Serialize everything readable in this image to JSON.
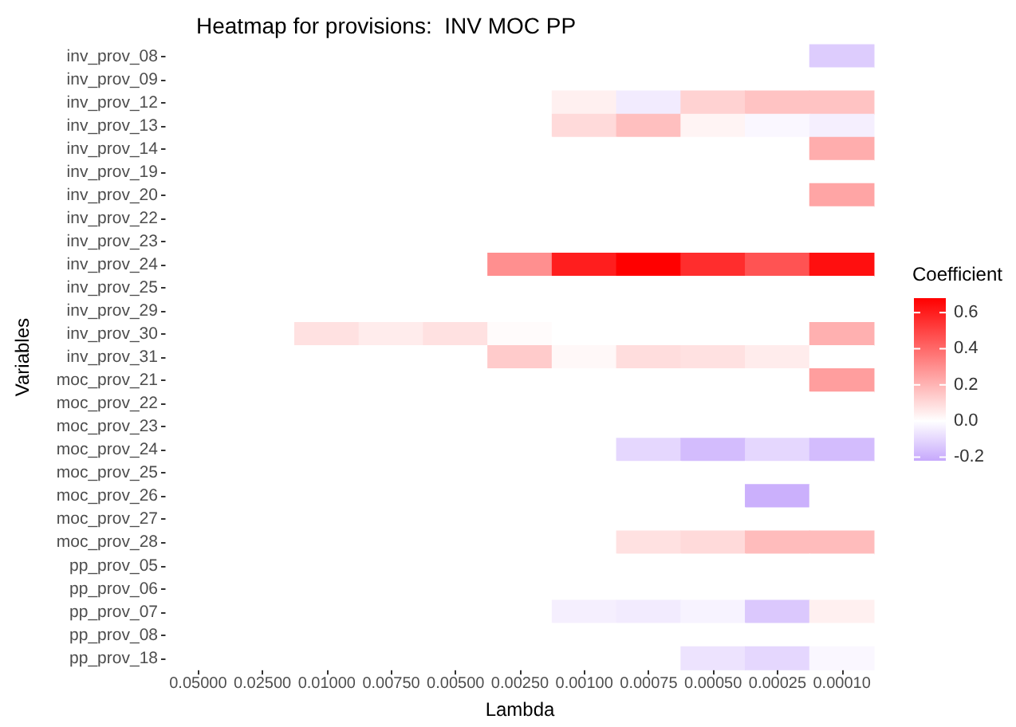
{
  "chart_data": {
    "type": "heatmap",
    "title": "Heatmap for provisions:  INV MOC PP",
    "xlabel": "Lambda",
    "ylabel": "Variables",
    "clabel": "Coefficient",
    "categories": [
      "0.05000",
      "0.02500",
      "0.01000",
      "0.00750",
      "0.00500",
      "0.00250",
      "0.00100",
      "0.00075",
      "0.00050",
      "0.00025",
      "0.00010"
    ],
    "y_categories": [
      "inv_prov_08",
      "inv_prov_09",
      "inv_prov_12",
      "inv_prov_13",
      "inv_prov_14",
      "inv_prov_19",
      "inv_prov_20",
      "inv_prov_22",
      "inv_prov_23",
      "inv_prov_24",
      "inv_prov_25",
      "inv_prov_29",
      "inv_prov_30",
      "inv_prov_31",
      "moc_prov_21",
      "moc_prov_22",
      "moc_prov_23",
      "moc_prov_24",
      "moc_prov_25",
      "moc_prov_26",
      "moc_prov_27",
      "moc_prov_28",
      "pp_prov_05",
      "pp_prov_06",
      "pp_prov_07",
      "pp_prov_08",
      "pp_prov_18"
    ],
    "cells": [
      [
        0,
        0,
        0,
        0,
        0,
        0,
        0,
        0,
        0,
        0,
        -0.13
      ],
      [
        0,
        0,
        0,
        0,
        0,
        0,
        0,
        0,
        0,
        0,
        0
      ],
      [
        0,
        0,
        0,
        0,
        0,
        0,
        0.04,
        -0.05,
        0.12,
        0.16,
        0.16
      ],
      [
        0,
        0,
        0,
        0,
        0,
        0,
        0.1,
        0.17,
        0.03,
        -0.02,
        -0.04
      ],
      [
        0,
        0,
        0,
        0,
        0,
        0,
        0,
        0,
        0,
        0,
        0.22
      ],
      [
        0,
        0,
        0,
        0,
        0,
        0,
        0,
        0,
        0,
        0,
        0
      ],
      [
        0,
        0,
        0,
        0,
        0,
        0,
        0,
        0,
        0,
        0,
        0.24
      ],
      [
        0,
        0,
        0,
        0,
        0,
        0,
        0,
        0,
        0,
        0,
        0
      ],
      [
        0,
        0,
        0,
        0,
        0,
        0,
        0,
        0,
        0,
        0,
        0
      ],
      [
        0,
        0,
        0,
        0,
        0,
        0.3,
        0.6,
        0.68,
        0.56,
        0.46,
        0.64
      ],
      [
        0,
        0,
        0,
        0,
        0,
        0,
        0,
        0,
        0,
        0,
        0
      ],
      [
        0,
        0,
        0,
        0,
        0,
        0,
        0,
        0,
        0,
        0,
        0
      ],
      [
        0,
        0,
        0.08,
        0.05,
        0.08,
        0.01,
        0,
        0,
        0,
        0,
        0.21
      ],
      [
        0,
        0,
        0,
        0,
        0,
        0.14,
        0.02,
        0.09,
        0.08,
        0.05,
        0
      ],
      [
        0,
        0,
        0,
        0,
        0,
        0,
        0,
        0,
        0,
        0,
        0.26
      ],
      [
        0,
        0,
        0,
        0,
        0,
        0,
        0,
        0,
        0,
        0,
        0
      ],
      [
        0,
        0,
        0,
        0,
        0,
        0,
        0,
        0,
        0,
        0,
        0
      ],
      [
        0,
        0,
        0,
        0,
        0,
        0,
        0,
        -0.1,
        -0.17,
        -0.1,
        -0.17
      ],
      [
        0,
        0,
        0,
        0,
        0,
        0,
        0,
        0,
        0,
        0,
        0
      ],
      [
        0,
        0,
        0,
        0,
        0,
        0,
        0,
        0,
        0,
        -0.2,
        0
      ],
      [
        0,
        0,
        0,
        0,
        0,
        0,
        0,
        0,
        0,
        0,
        0
      ],
      [
        0,
        0,
        0,
        0,
        0,
        0,
        0,
        0.08,
        0.1,
        0.18,
        0.18
      ],
      [
        0,
        0,
        0,
        0,
        0,
        0,
        0,
        0,
        0,
        0,
        0
      ],
      [
        0,
        0,
        0,
        0,
        0,
        0,
        0,
        0,
        0,
        0,
        0
      ],
      [
        0,
        0,
        0,
        0,
        0,
        0,
        -0.04,
        -0.05,
        -0.03,
        -0.14,
        0.04
      ],
      [
        0,
        0,
        0,
        0,
        0,
        0,
        0,
        0,
        0,
        0,
        0
      ],
      [
        0,
        0,
        0,
        0,
        0,
        0,
        0,
        0,
        -0.07,
        -0.1,
        -0.02
      ]
    ],
    "clim": [
      -0.22,
      0.68
    ],
    "cticks": [
      0.6,
      0.4,
      0.2,
      {
        "value": 0,
        "label": "0.0"
      },
      -0.2
    ]
  }
}
